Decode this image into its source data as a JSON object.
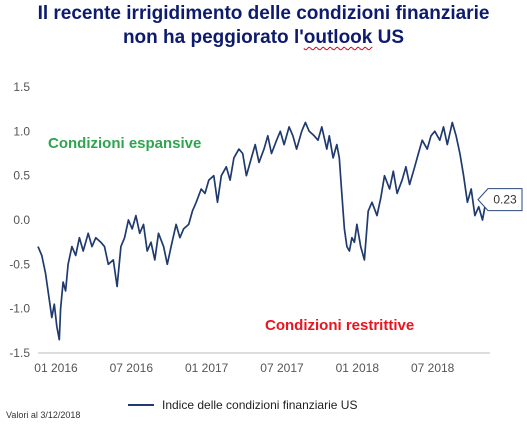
{
  "title_line1": "Il recente irrigidimento delle condizioni finanziarie",
  "title_line2_pre": "non ha peggiorato l'",
  "title_line2_word": "outlook",
  "title_line2_post": " US",
  "note": "Valori al 3/12/2018",
  "colors": {
    "line": "#1f3a6e",
    "expansive": "#2ea44f",
    "restrictive": "#e8141e",
    "title": "#0d1b6e"
  },
  "chart_data": {
    "type": "line",
    "title": "",
    "ylim": [
      -1.5,
      1.5
    ],
    "yticks": [
      "1.5",
      "1.0",
      "0.5",
      "0.0",
      "-0.5",
      "-1.0",
      "-1.5"
    ],
    "ytick_values": [
      1.5,
      1.0,
      0.5,
      0.0,
      -0.5,
      -1.0,
      -1.5
    ],
    "xlim": [
      0,
      36
    ],
    "xticks": [
      "01 2016",
      "07 2016",
      "01 2017",
      "07 2017",
      "01 2018",
      "07 2018"
    ],
    "xtick_values": [
      0,
      6,
      12,
      18,
      24,
      30
    ],
    "annotations": {
      "expansive": "Condizioni espansive",
      "restrictive": "Condizioni restrittive",
      "last_value": "0.23"
    },
    "series": [
      {
        "name": "Indice delle condizioni finanziarie US",
        "x": [
          0,
          0.3,
          0.6,
          0.9,
          1.1,
          1.3,
          1.5,
          1.7,
          1.8,
          2.0,
          2.2,
          2.4,
          2.7,
          3.0,
          3.3,
          3.6,
          4.0,
          4.3,
          4.6,
          5.0,
          5.3,
          5.6,
          6.0,
          6.3,
          6.6,
          6.9,
          7.2,
          7.5,
          7.8,
          8.1,
          8.4,
          8.7,
          9.0,
          9.3,
          9.6,
          10.0,
          10.3,
          10.6,
          11.0,
          11.3,
          11.6,
          12.0,
          12.3,
          12.6,
          13.0,
          13.3,
          13.6,
          14.0,
          14.3,
          14.6,
          15.0,
          15.3,
          15.6,
          16.0,
          16.3,
          16.6,
          17.0,
          17.3,
          17.6,
          18.0,
          18.3,
          18.6,
          19.0,
          19.3,
          19.6,
          20.0,
          20.3,
          20.6,
          21.0,
          21.3,
          21.6,
          22.0,
          22.3,
          22.6,
          23.0,
          23.2,
          23.5,
          23.8,
          24.0,
          24.2,
          24.4,
          24.6,
          24.8,
          25.0,
          25.2,
          25.4,
          25.7,
          26.0,
          26.3,
          26.6,
          27.0,
          27.3,
          27.6,
          28.0,
          28.3,
          28.6,
          29.0,
          29.3,
          29.6,
          30.0,
          30.3,
          30.6,
          31.0,
          31.3,
          31.6,
          32.0,
          32.3,
          32.6,
          33.0,
          33.3,
          33.6,
          33.9,
          34.2,
          34.5,
          34.8,
          35.1,
          35.4,
          35.7
        ],
        "values": [
          -0.3,
          -0.4,
          -0.6,
          -0.9,
          -1.1,
          -0.95,
          -1.2,
          -1.35,
          -1.0,
          -0.7,
          -0.8,
          -0.5,
          -0.3,
          -0.4,
          -0.2,
          -0.35,
          -0.15,
          -0.3,
          -0.2,
          -0.25,
          -0.3,
          -0.5,
          -0.45,
          -0.75,
          -0.3,
          -0.2,
          0.0,
          -0.1,
          0.05,
          -0.15,
          -0.05,
          -0.35,
          -0.25,
          -0.45,
          -0.15,
          -0.3,
          -0.5,
          -0.3,
          -0.05,
          -0.2,
          -0.1,
          -0.05,
          0.1,
          0.2,
          0.35,
          0.3,
          0.45,
          0.5,
          0.2,
          0.5,
          0.6,
          0.45,
          0.7,
          0.8,
          0.75,
          0.5,
          0.7,
          0.85,
          0.65,
          0.8,
          0.95,
          0.75,
          0.9,
          1.0,
          0.85,
          1.05,
          0.95,
          0.8,
          1.0,
          1.1,
          1.0,
          0.95,
          0.9,
          1.05,
          0.8,
          0.95,
          0.7,
          0.85,
          0.7,
          0.3,
          -0.1,
          -0.3,
          -0.35,
          -0.2,
          -0.25,
          -0.05,
          -0.3,
          -0.45,
          0.1,
          0.2,
          0.05,
          0.25,
          0.5,
          0.35,
          0.55,
          0.3,
          0.45,
          0.6,
          0.4,
          0.6,
          0.75,
          0.9,
          0.8,
          0.95,
          1.0,
          0.9,
          1.05,
          0.85,
          1.1,
          0.95,
          0.75,
          0.5,
          0.2,
          0.35,
          0.05,
          0.15,
          0.0,
          0.23
        ]
      }
    ]
  }
}
